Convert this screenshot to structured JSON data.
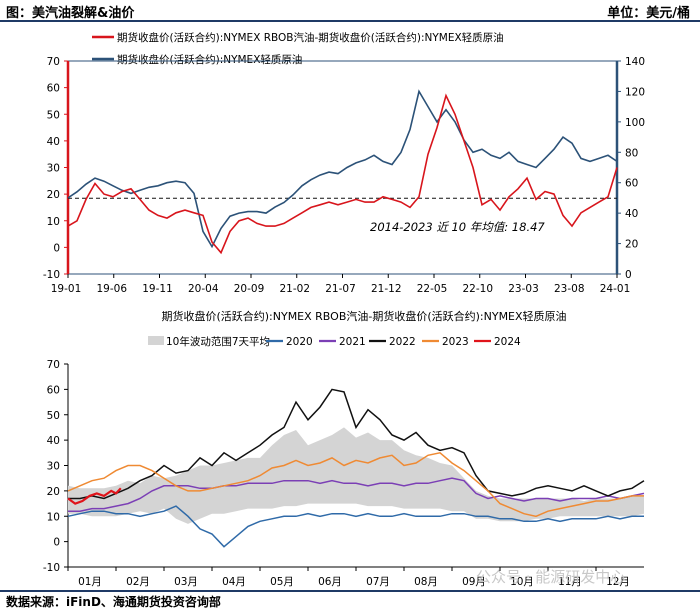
{
  "header": {
    "title": "图：美汽油裂解&油价",
    "unit": "单位：美元/桶"
  },
  "footer": {
    "source": "数据来源：iFinD、海通期货投资咨询部"
  },
  "watermark": "公众号 · 能源研发中心",
  "colors": {
    "red": "#d8151c",
    "navy": "#2c5278",
    "band": "#d4d4d4",
    "y2020": "#2f6aa8",
    "y2021": "#7b3fb5",
    "y2022": "#111111",
    "y2023": "#ef8a33",
    "y2024": "#e0141b",
    "frame": "#2c5278",
    "header_rule": "#1f3a66"
  },
  "chart_data": [
    {
      "type": "line",
      "legend": [
        "期货收盘价(活跃合约):NYMEX RBOB汽油-期货收盘价(活跃合约):NYMEX轻质原油",
        "期货收盘价(活跃合约):NYMEX轻质原油"
      ],
      "x_ticks": [
        "19-01",
        "19-06",
        "19-11",
        "20-04",
        "20-09",
        "21-02",
        "21-07",
        "21-12",
        "22-05",
        "22-10",
        "23-03",
        "23-08",
        "24-01"
      ],
      "left_axis": {
        "min": -10,
        "max": 70,
        "ticks": [
          "-10",
          "0",
          "10",
          "20",
          "30",
          "40",
          "50",
          "60",
          "70"
        ]
      },
      "right_axis": {
        "min": 0,
        "max": 140,
        "ticks": [
          "0",
          "20",
          "40",
          "60",
          "80",
          "100",
          "120",
          "140"
        ]
      },
      "average_line": {
        "value": 18.47,
        "label": "2014-2023 近 10 年均值: 18.47"
      },
      "series": [
        {
          "name": "RBOB汽油-轻质原油 裂解价差",
          "axis": "left",
          "color_key": "red",
          "x": [
            0,
            1,
            2,
            3,
            4,
            5,
            6,
            7,
            8,
            9,
            10,
            11,
            12,
            13,
            14,
            15,
            16,
            17,
            18,
            19,
            20,
            21,
            22,
            23,
            24,
            25,
            26,
            27,
            28,
            29,
            30,
            31,
            32,
            33,
            34,
            35,
            36,
            37,
            38,
            39,
            40,
            41,
            42,
            43,
            44,
            45,
            46,
            47,
            48,
            49,
            50,
            51,
            52,
            53,
            54,
            55,
            56,
            57,
            58,
            59,
            60,
            61
          ],
          "y": [
            8,
            10,
            18,
            24,
            20,
            19,
            21,
            22,
            18,
            14,
            12,
            11,
            13,
            14,
            13,
            12,
            2,
            -2,
            6,
            10,
            11,
            9,
            8,
            8,
            9,
            11,
            13,
            15,
            16,
            17,
            16,
            17,
            18,
            17,
            17,
            19,
            18,
            17,
            15,
            19,
            35,
            45,
            57,
            50,
            40,
            30,
            16,
            18,
            14,
            19,
            22,
            26,
            18,
            21,
            20,
            12,
            8,
            13,
            15,
            17,
            19,
            30
          ]
        },
        {
          "name": "NYMEX轻质原油",
          "axis": "right",
          "color_key": "navy",
          "x": [
            0,
            1,
            2,
            3,
            4,
            5,
            6,
            7,
            8,
            9,
            10,
            11,
            12,
            13,
            14,
            15,
            16,
            17,
            18,
            19,
            20,
            21,
            22,
            23,
            24,
            25,
            26,
            27,
            28,
            29,
            30,
            31,
            32,
            33,
            34,
            35,
            36,
            37,
            38,
            39,
            40,
            41,
            42,
            43,
            44,
            45,
            46,
            47,
            48,
            49,
            50,
            51,
            52,
            53,
            54,
            55,
            56,
            57,
            58,
            59,
            60,
            61
          ],
          "y": [
            50,
            54,
            59,
            63,
            61,
            58,
            55,
            53,
            55,
            57,
            58,
            60,
            61,
            60,
            53,
            28,
            18,
            30,
            38,
            40,
            41,
            41,
            40,
            44,
            47,
            52,
            58,
            62,
            65,
            67,
            66,
            70,
            73,
            75,
            78,
            74,
            72,
            80,
            95,
            120,
            110,
            100,
            108,
            100,
            88,
            80,
            82,
            78,
            76,
            80,
            74,
            72,
            70,
            76,
            82,
            90,
            86,
            76,
            74,
            76,
            78,
            74
          ]
        }
      ]
    },
    {
      "type": "line",
      "title": "期货收盘价(活跃合约):NYMEX RBOB汽油-期货收盘价(活跃合约):NYMEX轻质原油",
      "legend": [
        "10年波动范围7天平均",
        "2020",
        "2021",
        "2022",
        "2023",
        "2024"
      ],
      "x_ticks": [
        "01月",
        "02月",
        "03月",
        "04月",
        "05月",
        "06月",
        "07月",
        "08月",
        "09月",
        "10月",
        "11月",
        "12月"
      ],
      "y_axis": {
        "min": -10,
        "max": 70,
        "ticks": [
          "-10",
          "0",
          "10",
          "20",
          "30",
          "40",
          "50",
          "60",
          "70"
        ]
      },
      "band": {
        "name": "10年波动范围7天平均",
        "x": [
          0,
          0.25,
          0.5,
          0.75,
          1,
          1.25,
          1.5,
          1.75,
          2,
          2.25,
          2.5,
          2.75,
          3,
          3.25,
          3.5,
          3.75,
          4,
          4.25,
          4.5,
          4.75,
          5,
          5.25,
          5.5,
          5.75,
          6,
          6.25,
          6.5,
          6.75,
          7,
          7.25,
          7.5,
          7.75,
          8,
          8.25,
          8.5,
          8.75,
          9,
          9.25,
          9.5,
          9.75,
          10,
          10.25,
          10.5,
          10.75,
          11,
          11.25,
          11.5,
          11.75,
          12
        ],
        "low": [
          11,
          11,
          10,
          10,
          10,
          11,
          12,
          11,
          13,
          9,
          7,
          9,
          11,
          11,
          12,
          13,
          13,
          13,
          14,
          14,
          15,
          15,
          15,
          15,
          15,
          14,
          14,
          14,
          13,
          13,
          13,
          13,
          12,
          12,
          9,
          9,
          8,
          8,
          8,
          9,
          9,
          10,
          10,
          10,
          10,
          10,
          10,
          10,
          11
        ],
        "high": [
          22,
          21,
          21,
          21,
          22,
          24,
          23,
          26,
          25,
          26,
          28,
          30,
          30,
          31,
          32,
          33,
          33,
          38,
          42,
          44,
          38,
          40,
          42,
          45,
          41,
          43,
          40,
          40,
          36,
          34,
          33,
          31,
          30,
          25,
          20,
          18,
          17,
          17,
          17,
          17,
          17,
          17,
          17,
          16,
          17,
          17,
          17,
          18,
          18
        ]
      },
      "series": [
        {
          "name": "2020",
          "color_key": "y2020",
          "x": [
            0,
            0.25,
            0.5,
            0.75,
            1,
            1.25,
            1.5,
            1.75,
            2,
            2.25,
            2.5,
            2.75,
            3,
            3.25,
            3.5,
            3.75,
            4,
            4.25,
            4.5,
            4.75,
            5,
            5.25,
            5.5,
            5.75,
            6,
            6.25,
            6.5,
            6.75,
            7,
            7.25,
            7.5,
            7.75,
            8,
            8.25,
            8.5,
            8.75,
            9,
            9.25,
            9.5,
            9.75,
            10,
            10.25,
            10.5,
            10.75,
            11,
            11.25,
            11.5,
            11.75,
            12
          ],
          "y": [
            10,
            11,
            12,
            12,
            11,
            11,
            10,
            11,
            12,
            14,
            10,
            5,
            3,
            -2,
            2,
            6,
            8,
            9,
            10,
            10,
            11,
            10,
            11,
            11,
            10,
            11,
            10,
            10,
            11,
            10,
            10,
            10,
            11,
            11,
            10,
            10,
            9,
            9,
            8,
            8,
            9,
            8,
            9,
            9,
            9,
            10,
            9,
            10,
            10
          ]
        },
        {
          "name": "2021",
          "color_key": "y2021",
          "x": [
            0,
            0.25,
            0.5,
            0.75,
            1,
            1.25,
            1.5,
            1.75,
            2,
            2.25,
            2.5,
            2.75,
            3,
            3.25,
            3.5,
            3.75,
            4,
            4.25,
            4.5,
            4.75,
            5,
            5.25,
            5.5,
            5.75,
            6,
            6.25,
            6.5,
            6.75,
            7,
            7.25,
            7.5,
            7.75,
            8,
            8.25,
            8.5,
            8.75,
            9,
            9.25,
            9.5,
            9.75,
            10,
            10.25,
            10.5,
            10.75,
            11,
            11.25,
            11.5,
            11.75,
            12
          ],
          "y": [
            12,
            12,
            13,
            13,
            14,
            15,
            17,
            20,
            22,
            22,
            22,
            21,
            21,
            22,
            22,
            23,
            23,
            23,
            24,
            24,
            24,
            23,
            24,
            23,
            23,
            22,
            23,
            23,
            22,
            23,
            23,
            24,
            25,
            24,
            19,
            17,
            18,
            17,
            16,
            17,
            17,
            16,
            17,
            17,
            17,
            18,
            17,
            18,
            19
          ]
        },
        {
          "name": "2022",
          "color_key": "y2022",
          "x": [
            0,
            0.25,
            0.5,
            0.75,
            1,
            1.25,
            1.5,
            1.75,
            2,
            2.25,
            2.5,
            2.75,
            3,
            3.25,
            3.5,
            3.75,
            4,
            4.25,
            4.5,
            4.75,
            5,
            5.25,
            5.5,
            5.75,
            6,
            6.25,
            6.5,
            6.75,
            7,
            7.25,
            7.5,
            7.75,
            8,
            8.25,
            8.5,
            8.75,
            9,
            9.25,
            9.5,
            9.75,
            10,
            10.25,
            10.5,
            10.75,
            11,
            11.25,
            11.5,
            11.75,
            12
          ],
          "y": [
            17,
            17,
            18,
            17,
            19,
            21,
            24,
            26,
            30,
            27,
            28,
            33,
            30,
            35,
            32,
            35,
            38,
            42,
            45,
            55,
            48,
            53,
            60,
            59,
            45,
            52,
            48,
            42,
            40,
            43,
            38,
            36,
            37,
            35,
            26,
            20,
            19,
            18,
            19,
            21,
            22,
            21,
            20,
            22,
            20,
            18,
            20,
            21,
            24
          ]
        },
        {
          "name": "2023",
          "color_key": "y2023",
          "x": [
            0,
            0.25,
            0.5,
            0.75,
            1,
            1.25,
            1.5,
            1.75,
            2,
            2.25,
            2.5,
            2.75,
            3,
            3.25,
            3.5,
            3.75,
            4,
            4.25,
            4.5,
            4.75,
            5,
            5.25,
            5.5,
            5.75,
            6,
            6.25,
            6.5,
            6.75,
            7,
            7.25,
            7.5,
            7.75,
            8,
            8.25,
            8.5,
            8.75,
            9,
            9.25,
            9.5,
            9.75,
            10,
            10.25,
            10.5,
            10.75,
            11,
            11.25,
            11.5,
            11.75,
            12
          ],
          "y": [
            20,
            22,
            24,
            25,
            28,
            30,
            30,
            28,
            25,
            22,
            20,
            20,
            21,
            22,
            23,
            24,
            26,
            29,
            30,
            32,
            30,
            31,
            33,
            30,
            32,
            31,
            33,
            34,
            30,
            31,
            34,
            35,
            31,
            28,
            24,
            20,
            15,
            13,
            11,
            10,
            12,
            13,
            14,
            15,
            16,
            16,
            17,
            18,
            18
          ]
        },
        {
          "name": "2024",
          "color_key": "y2024",
          "x": [
            0,
            0.15,
            0.3,
            0.45,
            0.6,
            0.75,
            0.9,
            1,
            1.1
          ],
          "y": [
            17,
            15,
            16,
            18,
            19,
            18,
            20,
            19,
            21
          ]
        }
      ]
    }
  ]
}
